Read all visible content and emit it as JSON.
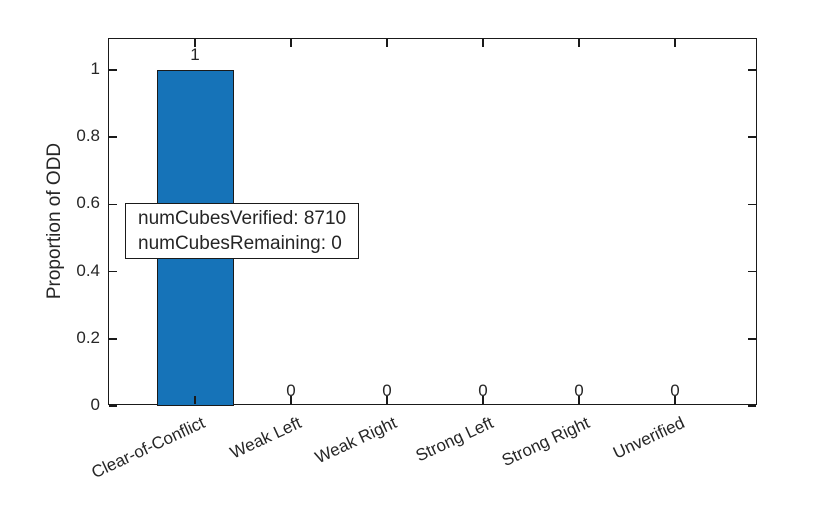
{
  "chart_data": {
    "type": "bar",
    "title": "",
    "categories": [
      "Clear-of-Conflict",
      "Weak Left",
      "Weak Right",
      "Strong Left",
      "Strong Right",
      "Unverified"
    ],
    "values": [
      1,
      0,
      0,
      0,
      0,
      0
    ],
    "bar_value_labels": [
      "1",
      "0",
      "0",
      "0",
      "0",
      "0"
    ],
    "xlabel": "",
    "ylabel": "Proportion of ODD",
    "ylim": [
      0,
      1.09
    ],
    "yticks": [
      0,
      0.2,
      0.4,
      0.6,
      0.8,
      1
    ],
    "ytick_labels": [
      "0",
      "0.2",
      "0.4",
      "0.6",
      "0.8",
      "1"
    ],
    "grid": false,
    "legend": false,
    "box": true,
    "tick_direction": "in",
    "bar_color": "#1673b8",
    "bar_edge_color": "#1a1a1a",
    "axis_color": "#1a1a1a",
    "text_color": "#262626",
    "annotation": {
      "lines": [
        "numCubesVerified: 8710",
        "numCubesRemaining: 0"
      ]
    }
  }
}
